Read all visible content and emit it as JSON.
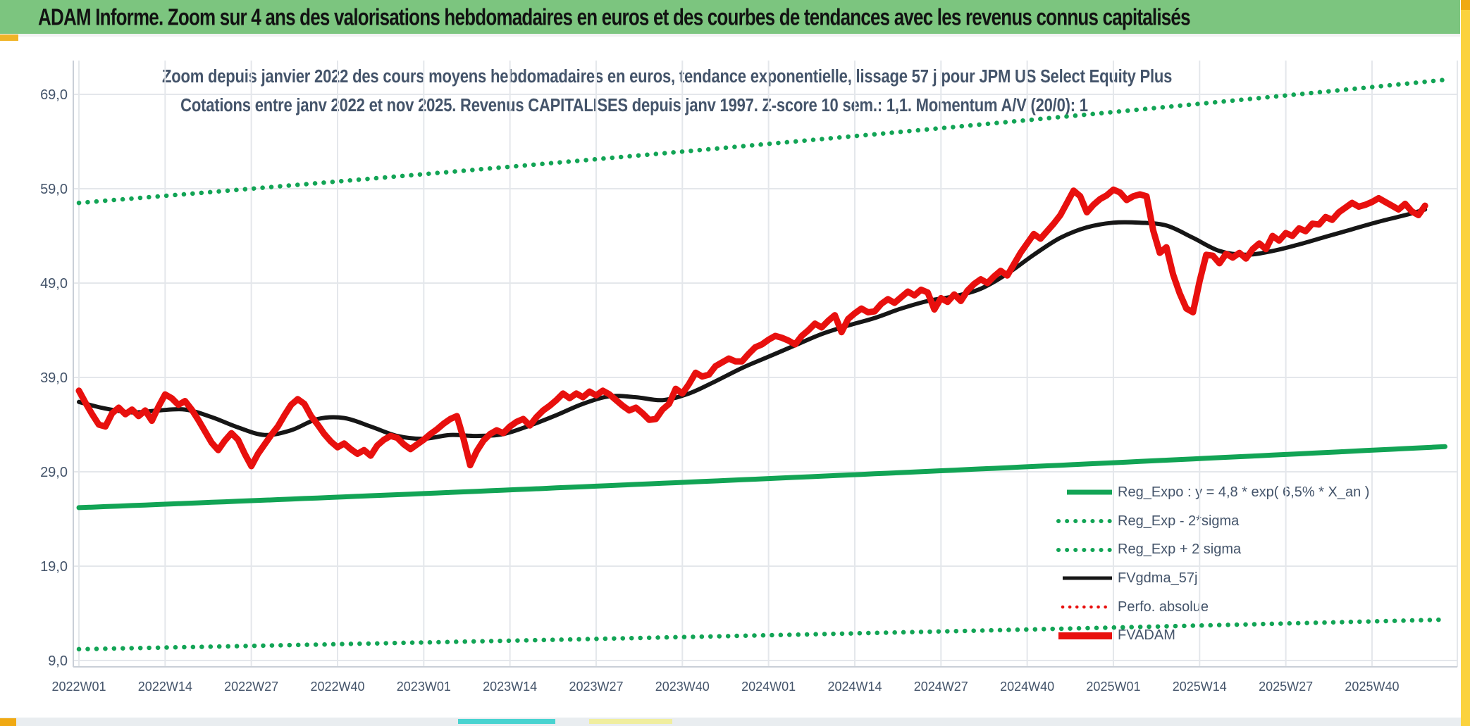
{
  "header": {
    "title": "ADAM Informe. Zoom sur 4 ans des valorisations hebdomadaires en euros et des courbes de tendances avec les revenus connus capitalisés"
  },
  "chart_data": {
    "type": "line",
    "title_line1": "Zoom depuis janvier 2022 des cours moyens hebdomadaires en euros, tendance exponentielle, lissage 57 j pour JPM US Select Equity Plus",
    "title_line2": "Cotations entre janv 2022 et nov 2025. Revenus CAPITALISES depuis janv 1997. Z-score 10 sem.: 1,1. Momentum A/V (20/0): 1",
    "x_tick_labels": [
      "2022W01",
      "2022W14",
      "2022W27",
      "2022W40",
      "2023W01",
      "2023W14",
      "2023W27",
      "2023W40",
      "2024W01",
      "2024W14",
      "2024W27",
      "2024W40",
      "2025W01",
      "2025W14",
      "2025W27",
      "2025W40"
    ],
    "weeks_per_tick": 13,
    "weeks_total": 204,
    "y_tick_labels": [
      "69,0",
      "59,0",
      "49,0",
      "39,0",
      "29,0",
      "19,0",
      "9,0"
    ],
    "y_tick_values": [
      69,
      59,
      49,
      39,
      29,
      19,
      9
    ],
    "ylim": [
      9,
      69
    ],
    "grid": true,
    "legend_position": "inside-bottom-right",
    "colors": {
      "green": "#12a455",
      "red": "#e8100e",
      "black": "#161616",
      "axis_text": "#44546a",
      "grid_line": "#e4e7eb",
      "axis_line": "#c9cfd7"
    },
    "series": [
      {
        "name": "Reg_Expo : y = 4,8 * exp( 6,5% *  X_an )",
        "kind": "exp",
        "start": 25.2,
        "end": 31.6,
        "color": "green",
        "style": "solid",
        "width": 7
      },
      {
        "name": "Reg_Exp - 2*sigma",
        "kind": "exp",
        "start": 10.2,
        "end": 13.3,
        "color": "green",
        "style": "dotted",
        "width": 6.5
      },
      {
        "name": "Reg_Exp + 2 sigma",
        "kind": "exp",
        "start": 57.5,
        "end": 70.4,
        "color": "green",
        "style": "dotted",
        "width": 6.5
      },
      {
        "name": "FVgdma_57j",
        "kind": "anchors",
        "step": 4,
        "color": "black",
        "style": "solid",
        "width": 6,
        "values": [
          36.4,
          35.7,
          35.3,
          35.5,
          35.6,
          34.8,
          33.7,
          32.9,
          33.4,
          34.6,
          34.7,
          33.8,
          32.8,
          32.5,
          32.9,
          32.8,
          33.0,
          33.9,
          35.0,
          36.2,
          37.0,
          36.9,
          36.6,
          37.3,
          38.6,
          40.0,
          41.2,
          42.4,
          43.6,
          44.5,
          45.3,
          46.3,
          47.1,
          47.6,
          48.4,
          50.0,
          52.0,
          53.8,
          54.9,
          55.4,
          55.4,
          55.1,
          53.8,
          52.4,
          52.0,
          52.4,
          53.1,
          53.9,
          54.7,
          55.5,
          56.2,
          56.8
        ]
      },
      {
        "name": "Perfo. absolue",
        "kind": "weekly-ref",
        "ref": 5,
        "color": "red",
        "style": "dotted",
        "width": 4.5
      },
      {
        "name": "FVADAM",
        "kind": "weekly",
        "color": "red",
        "style": "solid",
        "width": 9,
        "values": [
          37.6,
          36.3,
          35.1,
          34.0,
          33.8,
          35.2,
          35.8,
          35.1,
          35.6,
          34.9,
          35.5,
          34.4,
          35.9,
          37.2,
          36.8,
          36.1,
          36.5,
          35.6,
          34.5,
          33.3,
          32.1,
          31.3,
          32.3,
          33.1,
          32.4,
          30.9,
          29.6,
          30.9,
          31.9,
          32.9,
          33.8,
          35.0,
          36.1,
          36.7,
          36.2,
          34.9,
          34.0,
          33.0,
          32.2,
          31.6,
          32.0,
          31.4,
          30.9,
          31.3,
          30.7,
          31.8,
          32.4,
          32.8,
          32.6,
          31.9,
          31.4,
          31.9,
          32.4,
          33.0,
          33.5,
          34.1,
          34.6,
          34.9,
          32.5,
          29.7,
          31.2,
          32.3,
          33.0,
          33.4,
          33.1,
          33.8,
          34.3,
          34.6,
          33.9,
          34.8,
          35.5,
          36.0,
          36.6,
          37.3,
          36.8,
          37.3,
          36.9,
          37.5,
          37.1,
          37.6,
          37.2,
          36.6,
          36.0,
          35.5,
          35.8,
          35.2,
          34.5,
          34.6,
          35.6,
          36.2,
          37.8,
          37.3,
          38.3,
          39.5,
          39.1,
          39.3,
          40.2,
          40.6,
          41.0,
          40.7,
          40.7,
          41.5,
          42.2,
          42.5,
          43.0,
          43.4,
          43.2,
          42.9,
          42.5,
          43.4,
          44.0,
          44.7,
          44.3,
          45.0,
          45.6,
          43.8,
          45.2,
          45.8,
          46.3,
          45.9,
          46.0,
          46.8,
          47.3,
          46.9,
          47.5,
          48.1,
          47.7,
          48.3,
          48.0,
          46.2,
          47.4,
          47.0,
          47.8,
          47.1,
          48.2,
          48.9,
          49.4,
          49.0,
          49.7,
          50.3,
          49.8,
          51.0,
          52.2,
          53.2,
          54.2,
          53.7,
          54.5,
          55.3,
          56.2,
          57.5,
          58.8,
          58.2,
          56.5,
          57.3,
          57.9,
          58.3,
          58.9,
          58.6,
          57.8,
          58.2,
          58.4,
          58.2,
          54.6,
          52.2,
          52.8,
          49.9,
          47.9,
          46.3,
          45.9,
          49.2,
          52.0,
          51.9,
          51.1,
          52.1,
          51.7,
          52.2,
          51.6,
          52.6,
          53.2,
          52.6,
          54.0,
          53.5,
          54.3,
          54.0,
          54.8,
          54.5,
          55.3,
          55.2,
          56.0,
          55.7,
          56.5,
          57.0,
          57.5,
          57.1,
          57.3,
          57.6,
          58.0,
          57.6,
          57.2,
          56.8,
          57.4,
          56.6,
          56.2,
          57.2
        ]
      }
    ]
  }
}
